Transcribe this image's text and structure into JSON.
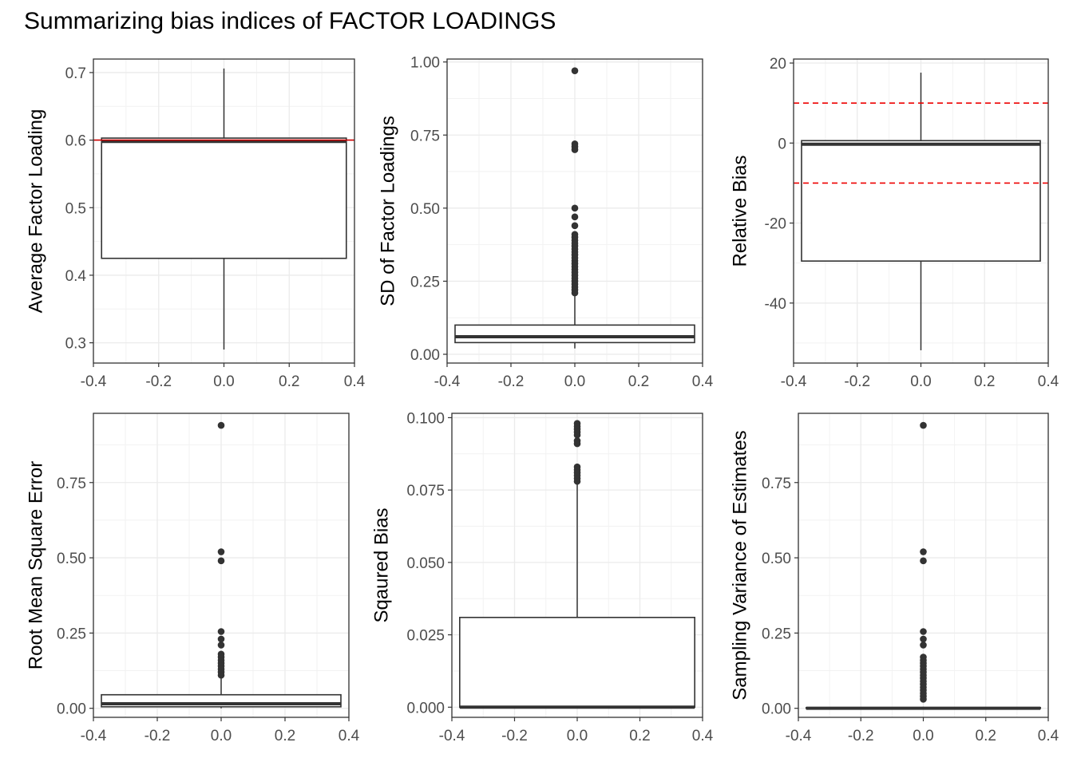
{
  "title": "Summarizing bias indices of FACTOR LOADINGS",
  "chart_data": [
    {
      "type": "boxplot",
      "ylabel": "Average Factor Loading",
      "xlim": [
        -0.4,
        0.4
      ],
      "ylim": [
        0.27,
        0.72
      ],
      "xticks": [
        -0.4,
        -0.2,
        0.0,
        0.2,
        0.4
      ],
      "xtick_labels": [
        "-0.4",
        "-0.2",
        "0.0",
        "0.2",
        "0.4"
      ],
      "yticks": [
        0.3,
        0.4,
        0.5,
        0.6,
        0.7
      ],
      "ytick_labels": [
        "0.3",
        "0.4",
        "0.5",
        "0.6",
        "0.7"
      ],
      "box": {
        "x": 0,
        "width": 0.75,
        "q1": 0.425,
        "median": 0.598,
        "q3": 0.603,
        "whisker_low": 0.29,
        "whisker_high": 0.706
      },
      "outliers": [],
      "reference_lines": [
        {
          "y": 0.6,
          "color": "#cc0000",
          "style": "solid"
        }
      ]
    },
    {
      "type": "boxplot",
      "ylabel": "SD of Factor Loadings",
      "xlim": [
        -0.4,
        0.4
      ],
      "ylim": [
        -0.03,
        1.01
      ],
      "xticks": [
        -0.4,
        -0.2,
        0.0,
        0.2,
        0.4
      ],
      "xtick_labels": [
        "-0.4",
        "-0.2",
        "0.0",
        "0.2",
        "0.4"
      ],
      "yticks": [
        0.0,
        0.25,
        0.5,
        0.75,
        1.0
      ],
      "ytick_labels": [
        "0.00",
        "0.25",
        "0.50",
        "0.75",
        "1.00"
      ],
      "box": {
        "x": 0,
        "width": 0.75,
        "q1": 0.04,
        "median": 0.06,
        "q3": 0.1,
        "whisker_low": 0.02,
        "whisker_high": 0.2
      },
      "outliers": [
        0.97,
        0.72,
        0.71,
        0.7,
        0.5,
        0.47,
        0.44,
        0.41,
        0.4,
        0.39,
        0.38,
        0.37,
        0.36,
        0.35,
        0.34,
        0.33,
        0.32,
        0.31,
        0.3,
        0.29,
        0.28,
        0.27,
        0.26,
        0.25,
        0.24,
        0.23,
        0.22,
        0.21
      ],
      "reference_lines": []
    },
    {
      "type": "boxplot",
      "ylabel": "Relative Bias",
      "xlim": [
        -0.4,
        0.4
      ],
      "ylim": [
        -55,
        21
      ],
      "xticks": [
        -0.4,
        -0.2,
        0.0,
        0.2,
        0.4
      ],
      "xtick_labels": [
        "-0.4",
        "-0.2",
        "0.0",
        "0.2",
        "0.4"
      ],
      "yticks": [
        -40,
        -20,
        0,
        20
      ],
      "ytick_labels": [
        "-40",
        "-20",
        "0",
        "20"
      ],
      "box": {
        "x": 0,
        "width": 0.75,
        "q1": -29.5,
        "median": -0.3,
        "q3": 0.6,
        "whisker_low": -51.8,
        "whisker_high": 17.6
      },
      "outliers": [],
      "reference_lines": [
        {
          "y": 10,
          "color": "#ee0000",
          "style": "dashed"
        },
        {
          "y": -10,
          "color": "#ee0000",
          "style": "dashed"
        }
      ]
    },
    {
      "type": "boxplot",
      "ylabel": "Root Mean Square Error",
      "xlim": [
        -0.4,
        0.4
      ],
      "ylim": [
        -0.03,
        0.98
      ],
      "xticks": [
        -0.4,
        -0.2,
        0.0,
        0.2,
        0.4
      ],
      "xtick_labels": [
        "-0.4",
        "-0.2",
        "0.0",
        "0.2",
        "0.4"
      ],
      "yticks": [
        0.0,
        0.25,
        0.5,
        0.75
      ],
      "ytick_labels": [
        "0.00",
        "0.25",
        "0.50",
        "0.75"
      ],
      "box": {
        "x": 0,
        "width": 0.75,
        "q1": 0.005,
        "median": 0.015,
        "q3": 0.045,
        "whisker_low": 0.0,
        "whisker_high": 0.1
      },
      "outliers": [
        0.94,
        0.52,
        0.49,
        0.255,
        0.23,
        0.21,
        0.18,
        0.17,
        0.16,
        0.15,
        0.14,
        0.13,
        0.12,
        0.11
      ],
      "reference_lines": []
    },
    {
      "type": "boxplot",
      "ylabel": "Sqaured Bias",
      "xlim": [
        -0.4,
        0.4
      ],
      "ylim": [
        -0.0035,
        0.1015
      ],
      "xticks": [
        -0.4,
        -0.2,
        0.0,
        0.2,
        0.4
      ],
      "xtick_labels": [
        "-0.4",
        "-0.2",
        "0.0",
        "0.2",
        "0.4"
      ],
      "yticks": [
        0.0,
        0.025,
        0.05,
        0.075,
        0.1
      ],
      "ytick_labels": [
        "0.000",
        "0.025",
        "0.050",
        "0.075",
        "0.100"
      ],
      "box": {
        "x": 0,
        "width": 0.75,
        "q1": 0.0,
        "median": 0.0,
        "q3": 0.031,
        "whisker_low": 0.0,
        "whisker_high": 0.077
      },
      "outliers": [
        0.098,
        0.097,
        0.096,
        0.095,
        0.094,
        0.092,
        0.091,
        0.083,
        0.082,
        0.081,
        0.08,
        0.079,
        0.078
      ],
      "reference_lines": []
    },
    {
      "type": "boxplot",
      "ylabel": "Sampling Variance of Estimates",
      "xlim": [
        -0.4,
        0.4
      ],
      "ylim": [
        -0.03,
        0.98
      ],
      "xticks": [
        -0.4,
        -0.2,
        0.0,
        0.2,
        0.4
      ],
      "xtick_labels": [
        "-0.4",
        "-0.2",
        "0.0",
        "0.2",
        "0.4"
      ],
      "yticks": [
        0.0,
        0.25,
        0.5,
        0.75
      ],
      "ytick_labels": [
        "0.00",
        "0.25",
        "0.50",
        "0.75"
      ],
      "box": {
        "x": 0,
        "width": 0.75,
        "q1": 0.0,
        "median": 0.0,
        "q3": 0.002,
        "whisker_low": 0.0,
        "whisker_high": 0.005
      },
      "outliers": [
        0.94,
        0.52,
        0.49,
        0.255,
        0.23,
        0.21,
        0.17,
        0.16,
        0.15,
        0.14,
        0.13,
        0.12,
        0.11,
        0.1,
        0.09,
        0.08,
        0.07,
        0.06,
        0.05,
        0.04,
        0.03
      ],
      "reference_lines": []
    }
  ]
}
